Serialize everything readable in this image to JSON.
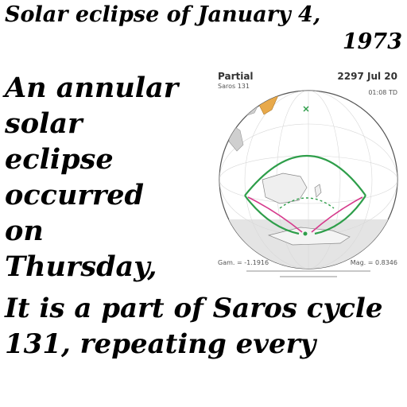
{
  "title": {
    "line1": "Solar eclipse of January 4,",
    "line2": "1973"
  },
  "lead_text": "An annular\nsolar\neclipse\noccurred\non\nThursday,",
  "body_text": "It is a part of Saros cycle 131, repeating every",
  "figure": {
    "type_label": "Partial",
    "saros_label": "Saros 131",
    "date_label": "2297 Jul 20",
    "time_label": "01:08 TD",
    "gamma_label": "Gam. = -1.1916",
    "magnitude_label": "Mag. = 0.8346",
    "colors": {
      "globe_outline": "#555555",
      "path_green": "#2e9e4a",
      "path_magenta": "#d63a8c",
      "land_orange": "#e8a94a",
      "shadow": "#e4e4e4"
    }
  }
}
